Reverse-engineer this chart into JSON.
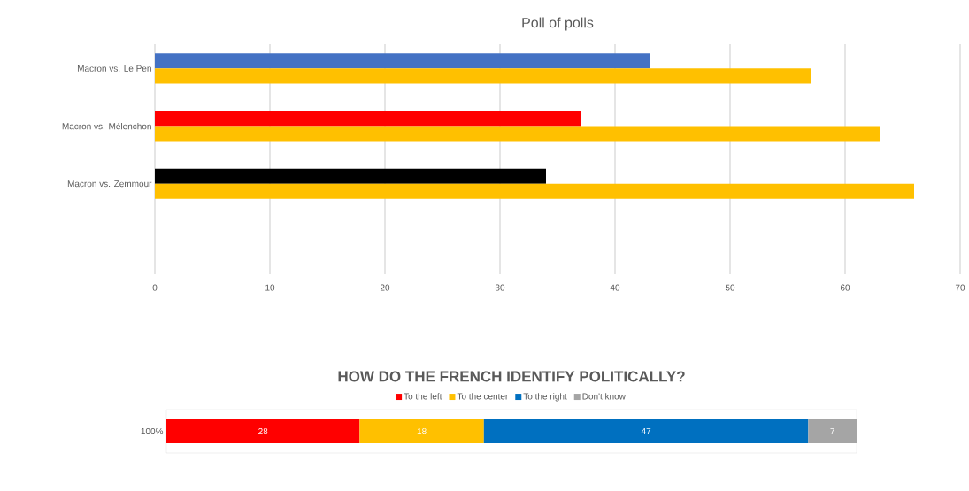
{
  "chart_data": [
    {
      "type": "bar",
      "orientation": "horizontal",
      "title": "Poll of polls",
      "categories": [
        "Macron vs. Le Pen",
        "Macron vs. Mélenchon",
        "Macron vs. Zemmour"
      ],
      "series": [
        {
          "colors": [
            "#4472c4",
            "#ff0000",
            "#000000"
          ],
          "values": [
            43,
            37,
            34
          ]
        },
        {
          "color": "#ffc000",
          "values": [
            57,
            63,
            66
          ]
        }
      ],
      "xlim": [
        0,
        70
      ],
      "xticks": [
        0,
        10,
        20,
        30,
        40,
        50,
        60,
        70
      ],
      "grid": "x",
      "legend": false
    },
    {
      "type": "bar",
      "orientation": "horizontal",
      "stacked": true,
      "title": "HOW DO THE FRENCH IDENTIFY POLITICALLY?",
      "categories": [
        "100%"
      ],
      "series": [
        {
          "name": "To the left",
          "color": "#ff0000",
          "values": [
            28
          ]
        },
        {
          "name": "To the center",
          "color": "#ffc000",
          "values": [
            18
          ]
        },
        {
          "name": "To the right",
          "color": "#0070c0",
          "values": [
            47
          ]
        },
        {
          "name": "Don't know",
          "color": "#a5a5a5",
          "values": [
            7
          ]
        }
      ],
      "data_labels": true,
      "legend": "top",
      "grid": false
    }
  ]
}
